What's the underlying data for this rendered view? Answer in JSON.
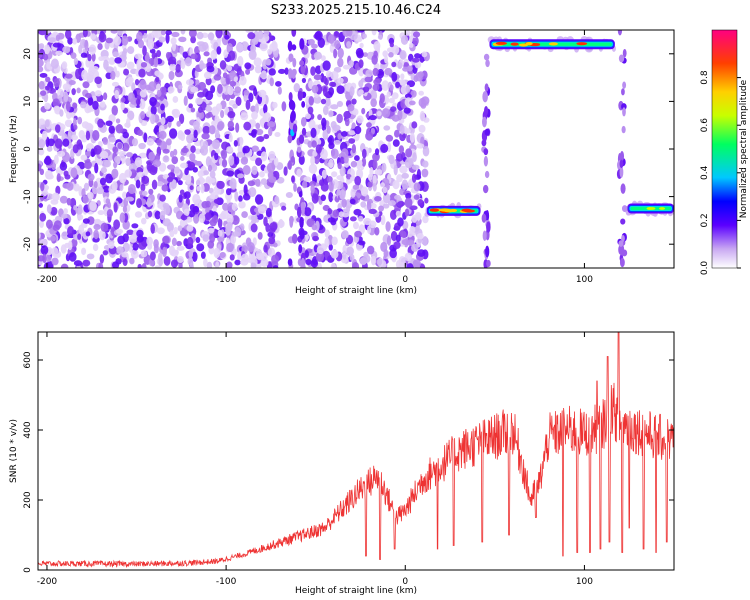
{
  "title": "S233.2025.215.10.46.C24",
  "chart_data": [
    {
      "type": "heatmap",
      "xlabel": "Height of straight line (km)",
      "ylabel": "Frequency (Hz)",
      "xlim": [
        -205,
        150
      ],
      "ylim": [
        -25,
        25
      ],
      "x_ticks": [
        -200,
        -100,
        0,
        100
      ],
      "y_ticks": [
        -20,
        -10,
        0,
        10,
        20
      ],
      "colorbar": {
        "label": "Normalized spectral amplitude",
        "range": [
          0,
          1
        ],
        "ticks": [
          "0.0",
          "0.2",
          "0.4",
          "0.6",
          "0.8"
        ],
        "colors": [
          "#ffffff",
          "#9b5de5",
          "#5a00ff",
          "#0000ff",
          "#00c8ff",
          "#00ff60",
          "#c8ff00",
          "#ffd000",
          "#ff4000",
          "#ff0080"
        ]
      },
      "features": [
        {
          "kind": "noise",
          "x_range": [
            -205,
            12
          ],
          "amplitude": 0.15
        },
        {
          "kind": "line",
          "x_range": [
            12,
            42
          ],
          "frequency": -13,
          "amplitude": 0.95
        },
        {
          "kind": "line",
          "x_range": [
            47,
            117
          ],
          "frequency": 22,
          "amplitude": 0.95
        },
        {
          "kind": "line",
          "x_range": [
            124,
            150
          ],
          "frequency": -12.5,
          "amplitude": 0.6
        },
        {
          "kind": "spot",
          "x": -63,
          "frequency": 3.5,
          "amplitude": 0.35
        }
      ]
    },
    {
      "type": "line",
      "xlabel": "Height of straight line (km)",
      "ylabel": "SNR (10 * v/v)",
      "xlim": [
        -205,
        150
      ],
      "ylim": [
        0,
        680
      ],
      "x_ticks": [
        -200,
        -100,
        0,
        100
      ],
      "y_ticks": [
        0,
        200,
        400,
        600
      ],
      "color": "#ee3333",
      "series": [
        {
          "x": [
            -205,
            -180,
            -150,
            -120,
            -105,
            -90,
            -75,
            -60,
            -45,
            -35,
            -25,
            -15,
            -5,
            0,
            10,
            20,
            30,
            40,
            50,
            60,
            65,
            70,
            75,
            80,
            90,
            100,
            110,
            115,
            120,
            130,
            140,
            150
          ],
          "values": [
            18,
            18,
            17,
            20,
            25,
            45,
            70,
            95,
            120,
            175,
            230,
            270,
            150,
            170,
            260,
            300,
            340,
            360,
            380,
            400,
            310,
            200,
            250,
            380,
            400,
            390,
            410,
            470,
            420,
            400,
            380,
            370
          ]
        }
      ],
      "spikes_up": [
        [
          113,
          610
        ],
        [
          119,
          680
        ],
        [
          107,
          540
        ]
      ],
      "dips": [
        [
          -22,
          40
        ],
        [
          -14,
          30
        ],
        [
          -6,
          60
        ],
        [
          18,
          60
        ],
        [
          27,
          70
        ],
        [
          43,
          80
        ],
        [
          58,
          100
        ],
        [
          73,
          150
        ],
        [
          88,
          40
        ],
        [
          96,
          50
        ],
        [
          103,
          50
        ],
        [
          109,
          60
        ],
        [
          114,
          80
        ],
        [
          121,
          50
        ],
        [
          125,
          120
        ],
        [
          133,
          60
        ],
        [
          140,
          50
        ],
        [
          146,
          80
        ]
      ]
    }
  ]
}
